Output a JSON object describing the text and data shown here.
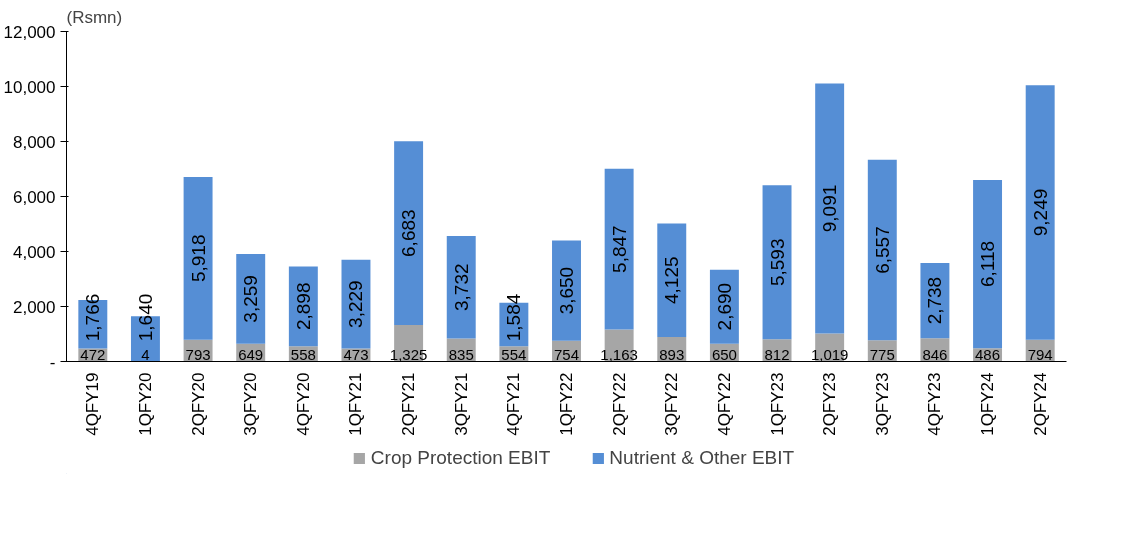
{
  "chart_data": {
    "type": "bar",
    "stacked": true,
    "ylabel": "(Rsmn)",
    "categories": [
      "4QFY19",
      "1QFY20",
      "2QFY20",
      "3QFY20",
      "4QFY20",
      "1QFY21",
      "2QFY21",
      "3QFY21",
      "4QFY21",
      "1QFY22",
      "2QFY22",
      "3QFY22",
      "4QFY22",
      "1QFY23",
      "2QFY23",
      "3QFY23",
      "4QFY23",
      "1QFY24",
      "2QFY24"
    ],
    "series": [
      {
        "name": "Crop Protection EBIT",
        "color": "#a6a6a6",
        "values": [
          472,
          4,
          793,
          649,
          558,
          473,
          1325,
          835,
          554,
          754,
          1163,
          893,
          650,
          812,
          1019,
          775,
          846,
          486,
          794
        ],
        "value_labels": [
          "472",
          "4",
          "793",
          "649",
          "558",
          "473",
          "1,325",
          "835",
          "554",
          "754",
          "1,163",
          "893",
          "650",
          "812",
          "1,019",
          "775",
          "846",
          "486",
          "794"
        ]
      },
      {
        "name": "Nutrient & Other EBIT",
        "color": "#558ed5",
        "values": [
          1766,
          1640,
          5918,
          3259,
          2898,
          3229,
          6683,
          3732,
          1584,
          3650,
          5847,
          4125,
          2690,
          5593,
          9091,
          6557,
          2738,
          6118,
          9249
        ],
        "value_labels": [
          "1,766",
          "1,640",
          "5,918",
          "3,259",
          "2,898",
          "3,229",
          "6,683",
          "3,732",
          "1,584",
          "3,650",
          "5,847",
          "4,125",
          "2,690",
          "5,593",
          "9,091",
          "6,557",
          "2,738",
          "6,118",
          "9,249"
        ]
      }
    ],
    "ylim": [
      0,
      12000
    ],
    "yticks": [
      {
        "value": 0,
        "label": "-"
      },
      {
        "value": 2000,
        "label": "2,000"
      },
      {
        "value": 4000,
        "label": "4,000"
      },
      {
        "value": 6000,
        "label": "6,000"
      },
      {
        "value": 8000,
        "label": "8,000"
      },
      {
        "value": 10000,
        "label": "10,000"
      },
      {
        "value": 12000,
        "label": "12,000"
      }
    ],
    "grid": false,
    "legend": "bottom",
    "data_labels": true
  }
}
